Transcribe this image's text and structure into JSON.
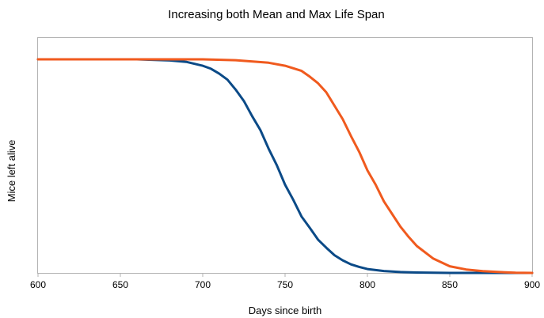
{
  "chart_data": {
    "type": "line",
    "title": "Increasing both Mean and Max Life Span",
    "xlabel": "Days since birth",
    "ylabel": "Mice left alive",
    "xlim": [
      600,
      900
    ],
    "ylim": [
      0,
      110
    ],
    "x_ticks": [
      600,
      650,
      700,
      750,
      800,
      850,
      900
    ],
    "y_tick_labels": false,
    "grid": false,
    "legend": "none",
    "series": [
      {
        "color": "#0b4a87",
        "x": [
          600,
          660,
          680,
          690,
          700,
          705,
          710,
          715,
          720,
          725,
          730,
          735,
          740,
          745,
          750,
          755,
          760,
          765,
          770,
          775,
          780,
          785,
          790,
          795,
          800,
          810,
          820,
          830,
          840,
          850,
          900
        ],
        "y": [
          100,
          100,
          99.5,
          98.8,
          97,
          95.6,
          93.3,
          90.5,
          85.8,
          80.5,
          73.4,
          66.9,
          58.2,
          50.4,
          41.3,
          34.2,
          26.4,
          21.1,
          15.6,
          11.8,
          8.3,
          5.9,
          4,
          2.8,
          1.8,
          0.9,
          0.4,
          0.2,
          0.1,
          0,
          0
        ]
      },
      {
        "color": "#f05a1e",
        "x": [
          600,
          670,
          700,
          720,
          740,
          750,
          760,
          765,
          770,
          775,
          780,
          785,
          790,
          795,
          800,
          805,
          810,
          815,
          820,
          825,
          830,
          840,
          850,
          860,
          870,
          880,
          890,
          900
        ],
        "y": [
          100,
          100,
          100,
          99.6,
          98.4,
          97,
          94.6,
          91.9,
          88.8,
          84.6,
          78.3,
          72,
          64.1,
          56.7,
          48,
          41.3,
          33.5,
          27.6,
          21.7,
          16.9,
          12.6,
          6.7,
          3.1,
          1.6,
          0.8,
          0.4,
          0.1,
          0
        ]
      }
    ]
  }
}
